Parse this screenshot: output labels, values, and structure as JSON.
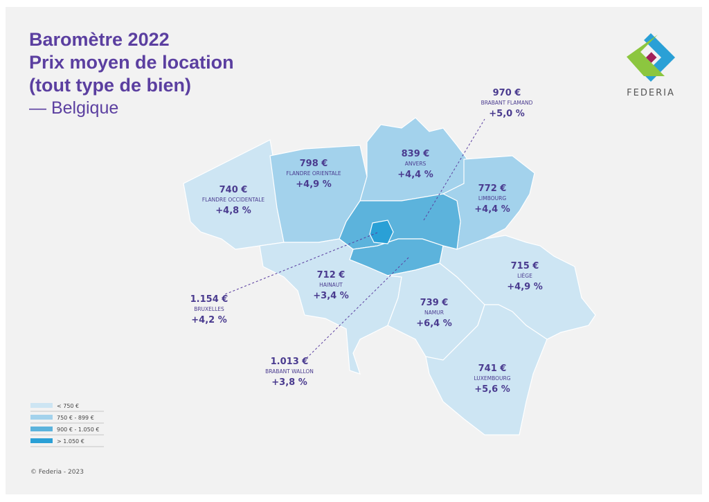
{
  "header": {
    "title_lines": [
      "Baromètre 2022",
      "Prix moyen de location",
      "(tout type de bien)"
    ],
    "subtitle": "— Belgique"
  },
  "logo": {
    "name": "FEDERIA"
  },
  "regions": [
    {
      "price": "740 €",
      "name": "FLANDRE OCCIDENTALE",
      "change": "+4,8 %",
      "color": "#cde5f3"
    },
    {
      "price": "798 €",
      "name": "FLANDRE ORIENTALE",
      "change": "+4,9 %",
      "color": "#a3d2ec"
    },
    {
      "price": "839 €",
      "name": "ANVERS",
      "change": "+4,4 %",
      "color": "#a3d2ec"
    },
    {
      "price": "772 €",
      "name": "LIMBOURG",
      "change": "+4,4 %",
      "color": "#a3d2ec"
    },
    {
      "price": "970 €",
      "name": "BRABANT FLAMAND",
      "change": "+5,0 %",
      "color": "#5cb3dc"
    },
    {
      "price": "1.154 €",
      "name": "BRUXELLES",
      "change": "+4,2 %",
      "color": "#2aa0d6"
    },
    {
      "price": "1.013 €",
      "name": "BRABANT WALLON",
      "change": "+3,8 %",
      "color": "#5cb3dc"
    },
    {
      "price": "712 €",
      "name": "HAINAUT",
      "change": "+3,4 %",
      "color": "#cde5f3"
    },
    {
      "price": "739 €",
      "name": "NAMUR",
      "change": "+6,4 %",
      "color": "#cde5f3"
    },
    {
      "price": "715 €",
      "name": "LIÈGE",
      "change": "+4,9 %",
      "color": "#cde5f3"
    },
    {
      "price": "741 €",
      "name": "LUXEMBOURG",
      "change": "+5,6 %",
      "color": "#cde5f3"
    }
  ],
  "legend": [
    {
      "label": "< 750 €",
      "color": "#cde5f3"
    },
    {
      "label": "750 € - 899 €",
      "color": "#a3d2ec"
    },
    {
      "label": "900 € - 1.050 €",
      "color": "#5cb3dc"
    },
    {
      "label": "> 1.050 €",
      "color": "#2aa0d6"
    }
  ],
  "footer": "© Federia - 2023"
}
